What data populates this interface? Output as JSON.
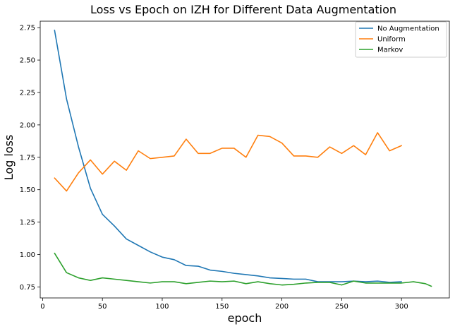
{
  "chart_data": {
    "type": "line",
    "title": "Loss vs Epoch on IZH for Different Data Augmentation",
    "xlabel": "epoch",
    "ylabel": "Log loss",
    "xlim": [
      -2,
      340
    ],
    "ylim": [
      0.665,
      2.8
    ],
    "xticks": [
      0,
      50,
      100,
      150,
      200,
      250,
      300
    ],
    "yticks": [
      0.75,
      1.0,
      1.25,
      1.5,
      1.75,
      2.0,
      2.25,
      2.5,
      2.75
    ],
    "ytick_labels": [
      "0.75",
      "1.00",
      "1.25",
      "1.50",
      "1.75",
      "2.00",
      "2.25",
      "2.50",
      "2.75"
    ],
    "legend_position": "top-right",
    "grid": false,
    "series": [
      {
        "name": "No Augmentation",
        "color": "#1f77b4",
        "x": [
          10,
          20,
          30,
          40,
          50,
          60,
          70,
          80,
          90,
          100,
          110,
          120,
          130,
          140,
          150,
          160,
          170,
          180,
          190,
          200,
          210,
          220,
          230,
          240,
          250,
          260,
          270,
          280,
          290,
          300
        ],
        "y": [
          2.73,
          2.2,
          1.83,
          1.51,
          1.31,
          1.22,
          1.12,
          1.07,
          1.02,
          0.98,
          0.96,
          0.915,
          0.91,
          0.88,
          0.87,
          0.855,
          0.845,
          0.835,
          0.82,
          0.815,
          0.81,
          0.81,
          0.79,
          0.79,
          0.79,
          0.795,
          0.79,
          0.795,
          0.785,
          0.79
        ]
      },
      {
        "name": "Uniform",
        "color": "#ff7f0e",
        "x": [
          10,
          20,
          30,
          40,
          50,
          60,
          70,
          80,
          90,
          100,
          110,
          120,
          130,
          140,
          150,
          160,
          170,
          180,
          190,
          200,
          210,
          220,
          230,
          240,
          250,
          260,
          270,
          280,
          290,
          300
        ],
        "y": [
          1.59,
          1.49,
          1.63,
          1.73,
          1.62,
          1.72,
          1.65,
          1.8,
          1.74,
          1.75,
          1.76,
          1.89,
          1.78,
          1.78,
          1.82,
          1.82,
          1.75,
          1.92,
          1.91,
          1.86,
          1.76,
          1.76,
          1.75,
          1.83,
          1.78,
          1.84,
          1.77,
          1.94,
          1.8,
          1.84
        ]
      },
      {
        "name": "Markov",
        "color": "#2ca02c",
        "x": [
          10,
          20,
          30,
          40,
          50,
          60,
          70,
          80,
          90,
          100,
          110,
          120,
          130,
          140,
          150,
          160,
          170,
          180,
          190,
          200,
          210,
          220,
          230,
          240,
          250,
          260,
          270,
          280,
          290,
          300,
          310,
          320,
          325
        ],
        "y": [
          1.01,
          0.86,
          0.82,
          0.8,
          0.82,
          0.81,
          0.8,
          0.79,
          0.78,
          0.79,
          0.79,
          0.775,
          0.785,
          0.795,
          0.79,
          0.795,
          0.775,
          0.79,
          0.775,
          0.765,
          0.77,
          0.78,
          0.785,
          0.785,
          0.765,
          0.795,
          0.78,
          0.78,
          0.78,
          0.78,
          0.79,
          0.775,
          0.755
        ]
      }
    ]
  }
}
